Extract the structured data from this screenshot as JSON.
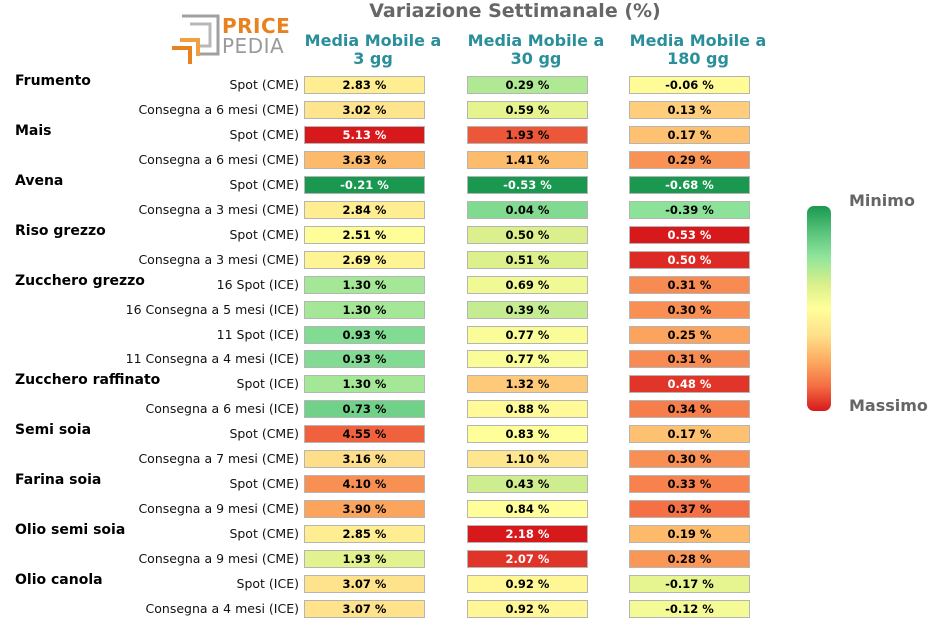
{
  "chart_data": {
    "type": "heatmap",
    "title": "Variazione Settimanale (%)",
    "columns": [
      "Media Mobile a\n3 gg",
      "Media Mobile a\n30 gg",
      "Media Mobile a\n180 gg"
    ],
    "groups": [
      {
        "name": "Frumento",
        "rows": [
          {
            "label": "Spot (CME)",
            "values": [
              "2.83 %",
              "0.29 %",
              "-0.06 %"
            ]
          },
          {
            "label": "Consegna a 6 mesi (CME)",
            "values": [
              "3.02 %",
              "0.59 %",
              "0.13 %"
            ]
          }
        ]
      },
      {
        "name": "Mais",
        "rows": [
          {
            "label": "Spot (CME)",
            "values": [
              "5.13 %",
              "1.93 %",
              "0.17 %"
            ]
          },
          {
            "label": "Consegna a 6 mesi (CME)",
            "values": [
              "3.63 %",
              "1.41 %",
              "0.29 %"
            ]
          }
        ]
      },
      {
        "name": "Avena",
        "rows": [
          {
            "label": "Spot (CME)",
            "values": [
              "-0.21 %",
              "-0.53 %",
              "-0.68 %"
            ]
          },
          {
            "label": "Consegna a 3 mesi (CME)",
            "values": [
              "2.84 %",
              "0.04 %",
              "-0.39 %"
            ]
          }
        ]
      },
      {
        "name": "Riso grezzo",
        "rows": [
          {
            "label": "Spot (CME)",
            "values": [
              "2.51 %",
              "0.50 %",
              "0.53 %"
            ]
          },
          {
            "label": "Consegna a 3 mesi (CME)",
            "values": [
              "2.69 %",
              "0.51 %",
              "0.50 %"
            ]
          }
        ]
      },
      {
        "name": "Zucchero grezzo",
        "rows": [
          {
            "label": "16 Spot (ICE)",
            "values": [
              "1.30 %",
              "0.69 %",
              "0.31 %"
            ]
          },
          {
            "label": "16 Consegna a 5 mesi (ICE)",
            "values": [
              "1.30 %",
              "0.39 %",
              "0.30 %"
            ]
          },
          {
            "label": "11 Spot (ICE)",
            "values": [
              "0.93 %",
              "0.77 %",
              "0.25 %"
            ]
          },
          {
            "label": "11 Consegna a 4 mesi (ICE)",
            "values": [
              "0.93 %",
              "0.77 %",
              "0.31 %"
            ]
          }
        ]
      },
      {
        "name": "Zucchero raffinato",
        "rows": [
          {
            "label": "Spot (ICE)",
            "values": [
              "1.30 %",
              "1.32 %",
              "0.48 %"
            ]
          },
          {
            "label": "Consegna a 6 mesi (ICE)",
            "values": [
              "0.73 %",
              "0.88 %",
              "0.34 %"
            ]
          }
        ]
      },
      {
        "name": "Semi soia",
        "rows": [
          {
            "label": "Spot (CME)",
            "values": [
              "4.55 %",
              "0.83 %",
              "0.17 %"
            ]
          },
          {
            "label": "Consegna a 7 mesi (CME)",
            "values": [
              "3.16 %",
              "1.10 %",
              "0.30 %"
            ]
          }
        ]
      },
      {
        "name": "Farina soia",
        "rows": [
          {
            "label": "Spot (CME)",
            "values": [
              "4.10 %",
              "0.43 %",
              "0.33 %"
            ]
          },
          {
            "label": "Consegna a 9 mesi (CME)",
            "values": [
              "3.90 %",
              "0.84 %",
              "0.37 %"
            ]
          }
        ]
      },
      {
        "name": "Olio semi soia",
        "rows": [
          {
            "label": "Spot (CME)",
            "values": [
              "2.85 %",
              "2.18 %",
              "0.19 %"
            ]
          },
          {
            "label": "Consegna a 9 mesi (CME)",
            "values": [
              "1.93 %",
              "2.07 %",
              "0.28 %"
            ]
          }
        ]
      },
      {
        "name": "Olio canola",
        "rows": [
          {
            "label": "Spot (ICE)",
            "values": [
              "3.07 %",
              "0.92 %",
              "-0.17 %"
            ]
          },
          {
            "label": "Consegna a 4 mesi (ICE)",
            "values": [
              "3.07 %",
              "0.92 %",
              "-0.12 %"
            ]
          }
        ]
      }
    ],
    "colorscale": {
      "min_label": "Minimo",
      "max_label": "Massimo",
      "colors": [
        "#d7191c",
        "#f46d43",
        "#fdae61",
        "#fee08b",
        "#ffff99",
        "#d9ef8b",
        "#91e59b",
        "#5ac47c",
        "#1a9850"
      ]
    },
    "logo": {
      "word1": "PRICE",
      "word2": "PEDIA"
    }
  }
}
